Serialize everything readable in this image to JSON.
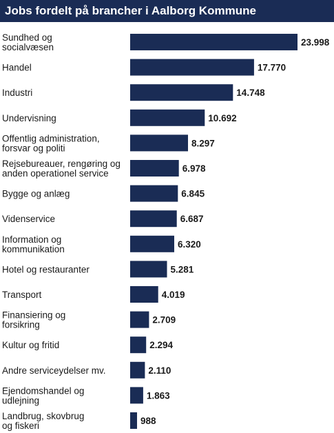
{
  "chart_data": {
    "type": "bar",
    "orientation": "horizontal",
    "title": "Jobs fordelt på brancher i Aalborg Kommune",
    "categories": [
      [
        "Sundhed og",
        "socialvæsen"
      ],
      [
        "Handel"
      ],
      [
        "Industri"
      ],
      [
        "Undervisning"
      ],
      [
        "Offentlig administration,",
        "forsvar og politi"
      ],
      [
        "Rejsebureauer, rengøring og",
        "anden operationel service"
      ],
      [
        "Bygge og anlæg"
      ],
      [
        "Videnservice"
      ],
      [
        "Information og",
        "kommunikation"
      ],
      [
        "Hotel og restauranter"
      ],
      [
        "Transport"
      ],
      [
        "Finansiering og",
        "forsikring"
      ],
      [
        "Kultur og fritid"
      ],
      [
        "Andre serviceydelser mv."
      ],
      [
        "Ejendomshandel og",
        "udlejning"
      ],
      [
        "Landbrug, skovbrug",
        "og fiskeri"
      ]
    ],
    "values": [
      23998,
      17770,
      14748,
      10692,
      8297,
      6978,
      6845,
      6687,
      6320,
      5281,
      4019,
      2709,
      2294,
      2110,
      1863,
      988
    ],
    "value_labels": [
      "23.998",
      "17.770",
      "14.748",
      "10.692",
      "8.297",
      "6.978",
      "6.845",
      "6.687",
      "6.320",
      "5.281",
      "4.019",
      "2.709",
      "2.294",
      "2.110",
      "1.863",
      "988"
    ],
    "bar_color": "#1a2c55",
    "grid": false,
    "legend": "none"
  }
}
